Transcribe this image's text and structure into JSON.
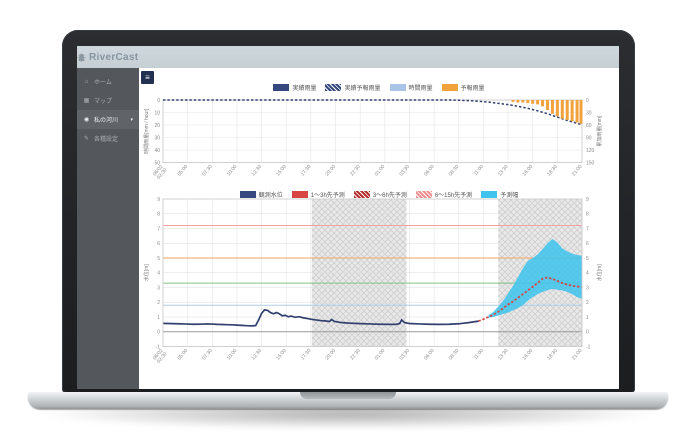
{
  "app": {
    "title": "RiverCast",
    "menu_toggle_icon": "≡",
    "header_icons": [
      "user-icon",
      "bell-icon",
      "gear-icon"
    ]
  },
  "sidebar": {
    "items": [
      {
        "icon_char": "⌂",
        "icon_name": "home-icon",
        "label": "ホーム",
        "active": false,
        "caret": ""
      },
      {
        "icon_char": "▦",
        "icon_name": "map-icon",
        "label": "マップ",
        "active": false,
        "caret": ""
      },
      {
        "icon_char": "◉",
        "icon_name": "my-river-icon",
        "label": "私の河川",
        "active": true,
        "caret": "▾"
      },
      {
        "icon_char": "✎",
        "icon_name": "settings-icon",
        "label": "各種設定",
        "active": false,
        "caret": ""
      }
    ]
  },
  "chart_data": [
    {
      "type": "bar",
      "name": "rainfall-chart",
      "ylabel_left": "時間雨量[mm / hour]",
      "ylabel_right": "累加雨量[mm]",
      "ylim_left": [
        0,
        50
      ],
      "left_ticks": [
        0,
        10,
        20,
        30,
        40,
        50
      ],
      "ylim_right": [
        0,
        150
      ],
      "right_ticks": [
        0,
        30,
        60,
        90,
        120,
        150
      ],
      "y_axis_inverted": true,
      "x_range_hours": [
        0,
        42.5
      ],
      "x_ticks": [
        "06/02 02:30",
        "05:00",
        "07:30",
        "10:00",
        "12:30",
        "15:00",
        "17:30",
        "20:00",
        "22:30",
        "01:00",
        "03:30",
        "06:00",
        "08:30",
        "11:00",
        "13:30",
        "16:00",
        "18:30",
        "21:00"
      ],
      "legend": [
        {
          "label": "実績雨量",
          "swatch": "sw-navy"
        },
        {
          "label": "実績予報雨量",
          "swatch": "sw-navyhatch"
        },
        {
          "label": "時間雨量",
          "swatch": "sw-lightblue"
        },
        {
          "label": "予報雨量",
          "swatch": "sw-orange"
        }
      ],
      "series": [
        {
          "name": "累加雨量",
          "type": "line",
          "style": "dotted",
          "axis": "right",
          "color": "#31406f",
          "points": [
            [
              0,
              0
            ],
            [
              5,
              0
            ],
            [
              10,
              0
            ],
            [
              15,
              0
            ],
            [
              20,
              0
            ],
            [
              25,
              0
            ],
            [
              29,
              0
            ],
            [
              30,
              0.5
            ],
            [
              31,
              1.5
            ],
            [
              32,
              3
            ],
            [
              33,
              5
            ],
            [
              34,
              8
            ],
            [
              35,
              11
            ],
            [
              36,
              15
            ],
            [
              37,
              20
            ],
            [
              38,
              26
            ],
            [
              39,
              33
            ],
            [
              40,
              41
            ],
            [
              41,
              49
            ],
            [
              42,
              56
            ],
            [
              42.5,
              59
            ]
          ]
        },
        {
          "name": "予報雨量",
          "type": "bar",
          "axis": "left",
          "color": "#f2a23c",
          "points": [
            [
              35.5,
              1.5
            ],
            [
              36,
              2
            ],
            [
              36.5,
              2
            ],
            [
              37,
              2.5
            ],
            [
              37.5,
              3
            ],
            [
              38,
              3.5
            ],
            [
              38.5,
              5
            ],
            [
              39,
              8
            ],
            [
              39.5,
              11
            ],
            [
              40,
              13
            ],
            [
              40.5,
              15
            ],
            [
              41,
              16
            ],
            [
              41.5,
              17
            ],
            [
              42,
              18
            ],
            [
              42.4,
              19
            ]
          ]
        }
      ]
    },
    {
      "type": "line",
      "name": "water-level-chart",
      "ylabel_left": "水位[m]",
      "ylabel_right": "水位[m]",
      "ylim": [
        -1,
        9
      ],
      "y_ticks": [
        9,
        8,
        7,
        6,
        5,
        4,
        3,
        2,
        1,
        0,
        -1
      ],
      "x_range_hours": [
        0,
        42.5
      ],
      "x_ticks": [
        "06/02 02:30",
        "05:00",
        "07:30",
        "10:00",
        "12:30",
        "15:00",
        "17:30",
        "20:00",
        "22:30",
        "01:00",
        "03:30",
        "06:00",
        "08:30",
        "11:00",
        "13:30",
        "16:00",
        "18:30",
        "21:00"
      ],
      "legend": [
        {
          "label": "観測水位",
          "swatch": "sw-navy"
        },
        {
          "label": "1〜3h先予測",
          "swatch": "sw-red"
        },
        {
          "label": "3〜6h先予測",
          "swatch": "sw-darkredhatch"
        },
        {
          "label": "6〜15h先予測",
          "swatch": "sw-pinkhatch"
        },
        {
          "label": "予測幅",
          "swatch": "sw-cyan"
        }
      ],
      "thresholds": [
        {
          "value": 7.2,
          "color": "#f2a0a0"
        },
        {
          "value": 5.0,
          "color": "#f2a45c"
        },
        {
          "value": 3.3,
          "color": "#83c383"
        },
        {
          "value": 1.8,
          "color": "#abcfeb"
        }
      ],
      "shaded_bands_hours": [
        [
          15.1,
          24.7
        ],
        [
          34,
          42.5
        ]
      ],
      "band": {
        "name": "予測幅",
        "color": "#41c4ec",
        "points": [
          [
            33,
            0.95,
            1.1
          ],
          [
            33.5,
            1.0,
            1.35
          ],
          [
            34,
            1.1,
            1.7
          ],
          [
            34.5,
            1.2,
            2.1
          ],
          [
            35,
            1.3,
            2.6
          ],
          [
            35.5,
            1.45,
            3.1
          ],
          [
            36,
            1.6,
            3.7
          ],
          [
            36.5,
            1.8,
            4.3
          ],
          [
            37,
            2.1,
            4.8
          ],
          [
            37.5,
            2.35,
            5.0
          ],
          [
            38,
            2.55,
            5.25
          ],
          [
            38.5,
            2.7,
            5.6
          ],
          [
            39,
            2.82,
            6.0
          ],
          [
            39.5,
            2.9,
            6.3
          ],
          [
            40,
            2.85,
            6.05
          ],
          [
            40.5,
            2.8,
            5.65
          ],
          [
            41,
            2.7,
            5.45
          ],
          [
            41.5,
            2.55,
            5.3
          ],
          [
            42,
            2.35,
            5.2
          ],
          [
            42.5,
            2.25,
            5.15
          ]
        ]
      },
      "series": [
        {
          "name": "観測水位",
          "style": "solid",
          "color": "#31406f",
          "points": [
            [
              0,
              0.57
            ],
            [
              0.5,
              0.56
            ],
            [
              1,
              0.55
            ],
            [
              1.5,
              0.54
            ],
            [
              2,
              0.53
            ],
            [
              2.5,
              0.52
            ],
            [
              3,
              0.51
            ],
            [
              3.5,
              0.51
            ],
            [
              4,
              0.52
            ],
            [
              4.5,
              0.53
            ],
            [
              5,
              0.52
            ],
            [
              5.5,
              0.5
            ],
            [
              6,
              0.49
            ],
            [
              6.5,
              0.48
            ],
            [
              7,
              0.47
            ],
            [
              7.5,
              0.45
            ],
            [
              8,
              0.43
            ],
            [
              8.5,
              0.41
            ],
            [
              9,
              0.4
            ],
            [
              9.4,
              0.42
            ],
            [
              9.7,
              0.8
            ],
            [
              10,
              1.25
            ],
            [
              10.3,
              1.48
            ],
            [
              10.6,
              1.45
            ],
            [
              10.9,
              1.3
            ],
            [
              11.2,
              1.22
            ],
            [
              11.5,
              1.3
            ],
            [
              11.8,
              1.22
            ],
            [
              12.1,
              1.08
            ],
            [
              12.4,
              1.12
            ],
            [
              12.7,
              1.02
            ],
            [
              13,
              1.06
            ],
            [
              13.4,
              0.98
            ],
            [
              13.8,
              1.02
            ],
            [
              14.2,
              0.95
            ],
            [
              14.6,
              0.9
            ],
            [
              15,
              0.85
            ],
            [
              15.5,
              0.8
            ],
            [
              16,
              0.76
            ],
            [
              16.5,
              0.73
            ],
            [
              16.9,
              0.7
            ],
            [
              17.1,
              0.83
            ],
            [
              17.4,
              0.7
            ],
            [
              18,
              0.63
            ],
            [
              18.5,
              0.6
            ],
            [
              19,
              0.58
            ],
            [
              20,
              0.55
            ],
            [
              21,
              0.53
            ],
            [
              22,
              0.51
            ],
            [
              23,
              0.5
            ],
            [
              23.6,
              0.5
            ],
            [
              24,
              0.55
            ],
            [
              24.2,
              0.8
            ],
            [
              24.5,
              0.62
            ],
            [
              25,
              0.56
            ],
            [
              26,
              0.53
            ],
            [
              27,
              0.51
            ],
            [
              28,
              0.5
            ],
            [
              29,
              0.51
            ],
            [
              30,
              0.54
            ],
            [
              30.5,
              0.58
            ],
            [
              31,
              0.62
            ],
            [
              31.5,
              0.67
            ],
            [
              32,
              0.72
            ]
          ]
        },
        {
          "name": "予測水位",
          "style": "dotted",
          "color": "#d64541",
          "points": [
            [
              32,
              0.72
            ],
            [
              32.5,
              0.85
            ],
            [
              33,
              1.0
            ],
            [
              33.5,
              1.15
            ],
            [
              34,
              1.35
            ],
            [
              34.5,
              1.6
            ],
            [
              35,
              1.85
            ],
            [
              35.5,
              2.05
            ],
            [
              36,
              2.3
            ],
            [
              36.5,
              2.55
            ],
            [
              37,
              2.8
            ],
            [
              37.5,
              3.05
            ],
            [
              38,
              3.3
            ],
            [
              38.5,
              3.6
            ],
            [
              39,
              3.68
            ],
            [
              39.5,
              3.58
            ],
            [
              40,
              3.45
            ],
            [
              40.5,
              3.3
            ],
            [
              41,
              3.2
            ],
            [
              41.5,
              3.12
            ],
            [
              42,
              3.07
            ],
            [
              42.5,
              3.05
            ]
          ]
        }
      ]
    }
  ],
  "colors": {
    "header_bg": "#c9d3d8",
    "sidebar_bg": "#54585c",
    "accent_navy": "#36497e",
    "accent_cyan": "#41c4ec",
    "accent_orange": "#f2a23c",
    "accent_red": "#d64541",
    "grid": "#e0e0e0"
  }
}
